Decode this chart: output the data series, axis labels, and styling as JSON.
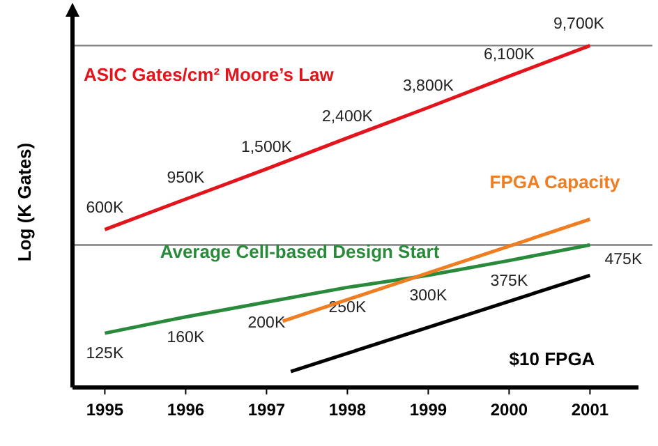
{
  "chart_data": {
    "type": "line",
    "ylabel": "Log (K Gates)",
    "log": "y",
    "xlim": [
      1994.6,
      2001.6
    ],
    "xticks": [
      1995,
      1996,
      1997,
      1998,
      1999,
      2000,
      2001
    ],
    "ylim": [
      55,
      15000
    ],
    "tick_labels": "x",
    "ref_lines": [
      {
        "axis": "y",
        "value": 9700,
        "color": "#7f7f7f"
      },
      {
        "axis": "y",
        "value": 475,
        "color": "#7f7f7f"
      }
    ],
    "series": [
      {
        "name": "ASIC Gates/cm² Moore’s Law",
        "color": "#e3141b",
        "x": [
          1995,
          1996,
          1997,
          1998,
          1999,
          2000,
          2001
        ],
        "values": [
          600,
          950,
          1500,
          2400,
          3800,
          6100,
          9700
        ],
        "value_labels": [
          "600K",
          "950K",
          "1,500K",
          "2,400K",
          "3,800K",
          "6,100K",
          "9,700K"
        ]
      },
      {
        "name": "Average Cell-based Design Start",
        "color": "#2a8a3c",
        "x": [
          1995,
          1996,
          1997,
          1998,
          1999,
          2000,
          2001
        ],
        "values": [
          125,
          160,
          200,
          250,
          300,
          375,
          475
        ],
        "value_labels": [
          "125K",
          "160K",
          "200K",
          "250K",
          "300K",
          "375K",
          "475K"
        ]
      },
      {
        "name": "FPGA Capacity",
        "color": "#ef7d22",
        "x": [
          1997.2,
          2001
        ],
        "values": [
          150,
          700
        ]
      },
      {
        "name": "$10 FPGA",
        "color": "#000000",
        "x": [
          1997.3,
          2001
        ],
        "values": [
          70,
          300
        ]
      }
    ]
  }
}
